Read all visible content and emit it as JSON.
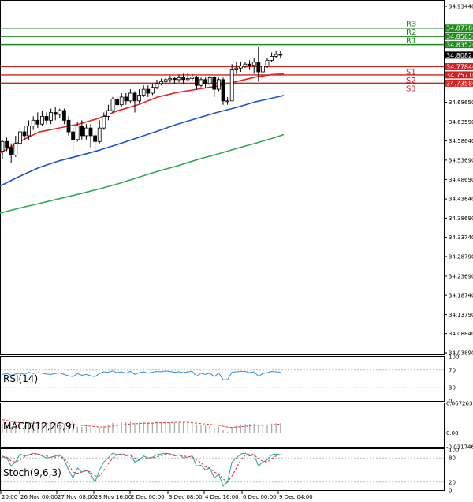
{
  "chart_data": {
    "type": "candlestick",
    "main": {
      "y_ticks": [
        "34.93440",
        "34.87780",
        "34.85650",
        "34.83520",
        "34.80823",
        "34.77840",
        "34.75710",
        "34.73580",
        "34.68650",
        "34.63590",
        "34.58640",
        "34.53690",
        "34.48690",
        "34.43640",
        "34.38690",
        "34.33740",
        "34.28790",
        "34.23690",
        "34.18740",
        "34.13790",
        "34.08840",
        "34.03890"
      ],
      "current_price": "34.80823",
      "levels": [
        {
          "name": "R3",
          "value": "34.87780",
          "color": "#1a8a1a"
        },
        {
          "name": "R2",
          "value": "34.85650",
          "color": "#1a8a1a"
        },
        {
          "name": "R1",
          "value": "34.83520",
          "color": "#1a8a1a"
        },
        {
          "name": "S1",
          "value": "34.77840",
          "color": "#d42020"
        },
        {
          "name": "S2",
          "value": "34.75710",
          "color": "#d42020"
        },
        {
          "name": "S3",
          "value": "34.73580",
          "color": "#d42020"
        }
      ],
      "ma_fast": [
        [
          0,
          34.555
        ],
        [
          25,
          34.585
        ],
        [
          50,
          34.61
        ],
        [
          75,
          34.62
        ],
        [
          100,
          34.63
        ],
        [
          125,
          34.645
        ],
        [
          150,
          34.665
        ],
        [
          175,
          34.68
        ],
        [
          200,
          34.7
        ],
        [
          225,
          34.712
        ],
        [
          250,
          34.72
        ],
        [
          275,
          34.728
        ],
        [
          300,
          34.74
        ],
        [
          325,
          34.752
        ],
        [
          345,
          34.758
        ],
        [
          360,
          34.76
        ]
      ],
      "ma_mid": [
        [
          0,
          34.47
        ],
        [
          25,
          34.495
        ],
        [
          50,
          34.518
        ],
        [
          75,
          34.535
        ],
        [
          100,
          34.548
        ],
        [
          125,
          34.562
        ],
        [
          150,
          34.578
        ],
        [
          175,
          34.595
        ],
        [
          200,
          34.612
        ],
        [
          225,
          34.63
        ],
        [
          250,
          34.645
        ],
        [
          275,
          34.66
        ],
        [
          300,
          34.673
        ],
        [
          325,
          34.688
        ],
        [
          345,
          34.697
        ],
        [
          360,
          34.704
        ]
      ],
      "ma_slow": [
        [
          0,
          34.4
        ],
        [
          25,
          34.413
        ],
        [
          50,
          34.425
        ],
        [
          75,
          34.437
        ],
        [
          100,
          34.449
        ],
        [
          125,
          34.462
        ],
        [
          150,
          34.476
        ],
        [
          175,
          34.492
        ],
        [
          200,
          34.508
        ],
        [
          225,
          34.522
        ],
        [
          250,
          34.538
        ],
        [
          275,
          34.552
        ],
        [
          300,
          34.567
        ],
        [
          325,
          34.581
        ],
        [
          345,
          34.593
        ],
        [
          360,
          34.603
        ]
      ],
      "candles": [
        [
          34.56,
          34.585,
          34.54,
          34.59
        ],
        [
          34.585,
          34.57,
          34.56,
          34.595
        ],
        [
          34.57,
          34.55,
          34.53,
          34.58
        ],
        [
          34.55,
          34.58,
          34.545,
          34.6
        ],
        [
          34.58,
          34.61,
          34.575,
          34.62
        ],
        [
          34.61,
          34.6,
          34.59,
          34.625
        ],
        [
          34.6,
          34.625,
          34.59,
          34.64
        ],
        [
          34.625,
          34.64,
          34.615,
          34.65
        ],
        [
          34.64,
          34.63,
          34.62,
          34.66
        ],
        [
          34.63,
          34.65,
          34.625,
          34.665
        ],
        [
          34.65,
          34.64,
          34.63,
          34.66
        ],
        [
          34.64,
          34.66,
          34.63,
          34.67
        ],
        [
          34.66,
          34.655,
          34.64,
          34.675
        ],
        [
          34.655,
          34.665,
          34.645,
          34.67
        ],
        [
          34.665,
          34.64,
          34.63,
          34.67
        ],
        [
          34.64,
          34.61,
          34.6,
          34.65
        ],
        [
          34.61,
          34.59,
          34.56,
          34.62
        ],
        [
          34.59,
          34.625,
          34.585,
          34.635
        ],
        [
          34.625,
          34.6,
          34.59,
          34.64
        ],
        [
          34.6,
          34.62,
          34.59,
          34.63
        ],
        [
          34.62,
          34.6,
          34.57,
          34.63
        ],
        [
          34.6,
          34.585,
          34.56,
          34.61
        ],
        [
          34.585,
          34.62,
          34.58,
          34.64
        ],
        [
          34.62,
          34.65,
          34.615,
          34.66
        ],
        [
          34.65,
          34.665,
          34.64,
          34.68
        ],
        [
          34.665,
          34.695,
          34.66,
          34.7
        ],
        [
          34.695,
          34.68,
          34.67,
          34.705
        ],
        [
          34.68,
          34.7,
          34.675,
          34.71
        ],
        [
          34.7,
          34.69,
          34.68,
          34.71
        ],
        [
          34.69,
          34.71,
          34.685,
          34.72
        ],
        [
          34.71,
          34.69,
          34.66,
          34.715
        ],
        [
          34.69,
          34.705,
          34.685,
          34.72
        ],
        [
          34.705,
          34.72,
          34.7,
          34.73
        ],
        [
          34.72,
          34.71,
          34.7,
          34.73
        ],
        [
          34.71,
          34.725,
          34.705,
          34.735
        ],
        [
          34.725,
          34.735,
          34.72,
          34.745
        ],
        [
          34.735,
          34.74,
          34.73,
          34.748
        ],
        [
          34.74,
          34.745,
          34.735,
          34.75
        ],
        [
          34.745,
          34.748,
          34.738,
          34.755
        ],
        [
          34.748,
          34.745,
          34.735,
          34.752
        ],
        [
          34.745,
          34.75,
          34.738,
          34.758
        ],
        [
          34.75,
          34.745,
          34.735,
          34.76
        ],
        [
          34.745,
          34.748,
          34.74,
          34.762
        ],
        [
          34.748,
          34.752,
          34.742,
          34.76
        ],
        [
          34.752,
          34.73,
          34.72,
          34.755
        ],
        [
          34.73,
          34.745,
          34.725,
          34.75
        ],
        [
          34.745,
          34.735,
          34.725,
          34.75
        ],
        [
          34.735,
          34.75,
          34.73,
          34.755
        ],
        [
          34.75,
          34.72,
          34.7,
          34.755
        ],
        [
          34.72,
          34.745,
          34.715,
          34.75
        ],
        [
          34.745,
          34.69,
          34.68,
          34.75
        ],
        [
          34.69,
          34.69,
          34.68,
          34.7
        ],
        [
          34.69,
          34.77,
          34.69,
          34.785
        ],
        [
          34.77,
          34.775,
          34.76,
          34.79
        ],
        [
          34.775,
          34.78,
          34.765,
          34.792
        ],
        [
          34.78,
          34.785,
          34.775,
          34.79
        ],
        [
          34.785,
          34.782,
          34.77,
          34.795
        ],
        [
          34.782,
          34.79,
          34.76,
          34.8
        ],
        [
          34.79,
          34.765,
          34.74,
          34.83
        ],
        [
          34.765,
          34.78,
          34.74,
          34.79
        ],
        [
          34.78,
          34.795,
          34.775,
          34.8
        ],
        [
          34.795,
          34.805,
          34.79,
          34.815
        ],
        [
          34.805,
          34.81,
          34.8,
          34.82
        ],
        [
          34.81,
          34.808,
          34.8,
          34.818
        ]
      ]
    },
    "rsi": {
      "label": "RSI(14)",
      "ticks": [
        "100",
        "70",
        "30",
        "0"
      ],
      "values": [
        60,
        62,
        58,
        61,
        63,
        60,
        65,
        62,
        64,
        63,
        61,
        60,
        62,
        64,
        60,
        57,
        55,
        62,
        58,
        60,
        57,
        55,
        62,
        66,
        65,
        68,
        64,
        66,
        63,
        67,
        60,
        64,
        66,
        63,
        65,
        67,
        66,
        68,
        67,
        65,
        66,
        64,
        66,
        67,
        56,
        63,
        60,
        63,
        55,
        63,
        48,
        48,
        65,
        66,
        67,
        67,
        64,
        66,
        56,
        62,
        64,
        67,
        66,
        65
      ]
    },
    "macd": {
      "label": "MACD(12,26,9)",
      "ticks": [
        "0.067263",
        "0.00",
        "-0.031746"
      ],
      "hist": [
        0.02,
        0.018,
        0.014,
        0.015,
        0.018,
        0.018,
        0.02,
        0.022,
        0.023,
        0.023,
        0.022,
        0.022,
        0.022,
        0.022,
        0.02,
        0.016,
        0.012,
        0.014,
        0.013,
        0.014,
        0.012,
        0.01,
        0.012,
        0.016,
        0.019,
        0.023,
        0.023,
        0.024,
        0.024,
        0.025,
        0.023,
        0.023,
        0.024,
        0.023,
        0.023,
        0.024,
        0.024,
        0.025,
        0.024,
        0.024,
        0.024,
        0.023,
        0.023,
        0.022,
        0.018,
        0.018,
        0.016,
        0.016,
        0.012,
        0.013,
        0.006,
        0.003,
        0.012,
        0.016,
        0.019,
        0.02,
        0.02,
        0.021,
        0.018,
        0.018,
        0.019,
        0.021,
        0.022,
        0.022
      ],
      "signal": [
        0.03,
        0.028,
        0.026,
        0.024,
        0.023,
        0.022,
        0.022,
        0.022,
        0.022,
        0.022,
        0.022,
        0.022,
        0.022,
        0.022,
        0.022,
        0.021,
        0.019,
        0.018,
        0.017,
        0.016,
        0.015,
        0.014,
        0.013,
        0.013,
        0.014,
        0.015,
        0.017,
        0.018,
        0.019,
        0.02,
        0.021,
        0.021,
        0.022,
        0.022,
        0.022,
        0.023,
        0.023,
        0.023,
        0.023,
        0.024,
        0.024,
        0.024,
        0.024,
        0.023,
        0.022,
        0.021,
        0.02,
        0.019,
        0.018,
        0.017,
        0.015,
        0.013,
        0.012,
        0.013,
        0.014,
        0.015,
        0.016,
        0.017,
        0.017,
        0.017,
        0.018,
        0.018,
        0.019,
        0.02
      ]
    },
    "stoch": {
      "label": "Stoch(9,6,3)",
      "ticks": [
        "100",
        "80",
        "20",
        "0"
      ],
      "k": [
        85,
        80,
        60,
        70,
        90,
        85,
        88,
        92,
        90,
        85,
        80,
        82,
        85,
        88,
        75,
        50,
        30,
        55,
        45,
        50,
        40,
        20,
        50,
        70,
        80,
        92,
        88,
        90,
        85,
        88,
        70,
        75,
        85,
        80,
        82,
        88,
        90,
        92,
        90,
        85,
        88,
        80,
        82,
        85,
        60,
        62,
        50,
        55,
        30,
        40,
        10,
        20,
        70,
        80,
        90,
        92,
        85,
        88,
        60,
        70,
        75,
        88,
        90,
        88
      ],
      "d": [
        82,
        82,
        72,
        70,
        75,
        82,
        88,
        90,
        90,
        88,
        85,
        82,
        82,
        85,
        80,
        65,
        45,
        42,
        45,
        48,
        45,
        35,
        35,
        50,
        65,
        80,
        88,
        90,
        88,
        87,
        80,
        75,
        78,
        80,
        80,
        83,
        86,
        90,
        90,
        88,
        87,
        85,
        83,
        83,
        75,
        68,
        58,
        55,
        45,
        40,
        28,
        20,
        35,
        55,
        75,
        87,
        89,
        88,
        78,
        72,
        70,
        78,
        85,
        88
      ]
    },
    "x_labels": [
      "20:00",
      "26 Nov 00:00",
      "27 Nov 08:00",
      "28 Nov 16:00",
      "2 Dec 00:00",
      "3 Dec 08:00",
      "4 Dec 16:00",
      "6 Dec 00:00",
      "9 Dec 04:00"
    ]
  },
  "colors": {
    "bull": "#1e8a1e",
    "bear": "#cc2020",
    "ma_fast": "#e82020",
    "ma_mid": "#2050d0",
    "ma_slow": "#2eaa55",
    "rsi": "#2b8fd8",
    "macd_signal": "#e83030",
    "stoch_k": "#1fa0a0",
    "stoch_d": "#e03030",
    "level_up": "#1a8a1a",
    "level_down": "#d42020"
  }
}
